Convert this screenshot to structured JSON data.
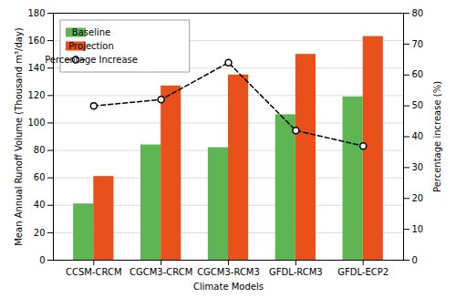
{
  "chart_data": {
    "type": "bar",
    "categories": [
      "CCSM-CRCM",
      "CGCM3-CRCM",
      "CGCM3-RCM3",
      "GFDL-RCM3",
      "GFDL-ECP2"
    ],
    "series": [
      {
        "name": "Baseline",
        "color": "#5DB554",
        "values": [
          41,
          84,
          82,
          106,
          119
        ]
      },
      {
        "name": "Projection",
        "color": "#E8521A",
        "values": [
          61,
          127,
          135,
          150,
          163
        ]
      },
      {
        "name": "Percentage Increase",
        "type": "line",
        "axis": "y2",
        "color": "#000000",
        "line_style": "dashed",
        "marker": "circle",
        "values": [
          50,
          52,
          64,
          42,
          37
        ]
      }
    ],
    "xlabel": "Climate Models",
    "ylabel": "Mean Annual Runoff Volume (Thousand m³/day)",
    "y2label": "Percentage increase (%)",
    "ylim": [
      0,
      180
    ],
    "yticks": [
      0,
      20,
      40,
      60,
      80,
      100,
      120,
      140,
      160,
      180
    ],
    "y2lim": [
      0,
      80
    ],
    "y2ticks": [
      0,
      10,
      20,
      30,
      40,
      50,
      60,
      70,
      80
    ],
    "grid": true,
    "legend": "upper left"
  }
}
